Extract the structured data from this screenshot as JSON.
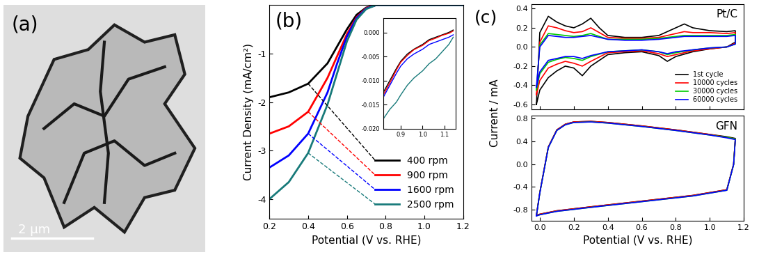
{
  "chart_data": [
    {
      "type": "image",
      "panel_label": "(a)",
      "scale_bar_label": "2 μm"
    },
    {
      "type": "line",
      "panel_label": "(b)",
      "xlabel": "Potential (V vs. RHE)",
      "ylabel": "Current Density (mA/cm²)",
      "x": [
        0.2,
        0.3,
        0.4,
        0.5,
        0.55,
        0.6,
        0.65,
        0.7,
        0.75,
        0.8,
        0.9,
        1.0,
        1.1,
        1.2
      ],
      "series": [
        {
          "name": "400 rpm",
          "color": "#000000",
          "values": [
            -1.9,
            -1.8,
            -1.62,
            -1.2,
            -0.85,
            -0.5,
            -0.2,
            -0.05,
            0,
            0,
            0,
            0,
            0,
            0
          ]
        },
        {
          "name": "900 rpm",
          "color": "#ff0000",
          "values": [
            -2.65,
            -2.5,
            -2.2,
            -1.5,
            -1.05,
            -0.6,
            -0.25,
            -0.06,
            0,
            0,
            0,
            0,
            0,
            0
          ]
        },
        {
          "name": "1600 rpm",
          "color": "#0000ff",
          "values": [
            -3.35,
            -3.1,
            -2.65,
            -1.8,
            -1.2,
            -0.65,
            -0.27,
            -0.07,
            0,
            0,
            0,
            0,
            0,
            0
          ]
        },
        {
          "name": "2500 rpm",
          "color": "#187a7a",
          "values": [
            -4.0,
            -3.65,
            -3.05,
            -2.05,
            -1.4,
            -0.75,
            -0.3,
            -0.08,
            0,
            0,
            0,
            0,
            0,
            0
          ]
        }
      ],
      "guide_from": 0.4,
      "xlim": [
        0.2,
        1.2
      ],
      "xticks": [
        0.2,
        0.4,
        0.6,
        0.8,
        1.0,
        1.2
      ],
      "ylim": [
        -4.4,
        0.0
      ],
      "yticks": [
        -1,
        -2,
        -3,
        -4
      ],
      "legend": "lower right",
      "inset": {
        "type": "line",
        "x": [
          0.82,
          0.85,
          0.88,
          0.9,
          0.93,
          0.96,
          1.0,
          1.03,
          1.06,
          1.09,
          1.12,
          1.14
        ],
        "series": [
          {
            "color": "#000000",
            "values": [
              -0.0125,
              -0.01,
              -0.0075,
              -0.006,
              -0.0045,
              -0.0035,
              -0.0025,
              -0.0015,
              -0.001,
              -0.0005,
              0.0,
              0.0005
            ]
          },
          {
            "color": "#ff0000",
            "values": [
              -0.013,
              -0.0105,
              -0.0078,
              -0.0062,
              -0.0048,
              -0.0036,
              -0.0027,
              -0.0017,
              -0.0012,
              -0.0006,
              -0.0002,
              0.0003
            ]
          },
          {
            "color": "#0000ff",
            "values": [
              -0.0135,
              -0.011,
              -0.0085,
              -0.007,
              -0.0055,
              -0.0045,
              -0.0035,
              -0.0025,
              -0.002,
              -0.0015,
              -0.001,
              -0.0005
            ]
          },
          {
            "color": "#187a7a",
            "values": [
              -0.018,
              -0.016,
              -0.0145,
              -0.013,
              -0.011,
              -0.0095,
              -0.008,
              -0.0065,
              -0.0055,
              -0.004,
              -0.0025,
              -0.001
            ]
          }
        ],
        "xlim": [
          0.82,
          1.15
        ],
        "xticks": [
          0.9,
          1.0,
          1.1
        ],
        "ylim": [
          -0.02,
          0.003
        ],
        "yticks": [
          {
            "value": 0.0,
            "label": "0.000"
          },
          {
            "value": -0.005,
            "label": "-0.005"
          },
          {
            "value": -0.01,
            "label": "-0.010"
          },
          {
            "value": -0.015,
            "label": "-0.015"
          },
          {
            "value": -0.02,
            "label": "-0.020"
          }
        ]
      }
    },
    {
      "type": "line",
      "panel_label": "(c)",
      "title": "Pt/C",
      "ylabel": "Current / mA",
      "x": [
        -0.02,
        0.0,
        0.05,
        0.1,
        0.15,
        0.2,
        0.25,
        0.3,
        0.35,
        0.4,
        0.5,
        0.6,
        0.7,
        0.8,
        0.85,
        0.9,
        1.0,
        1.1,
        1.15,
        1.15,
        1.1,
        1.0,
        0.9,
        0.8,
        0.75,
        0.7,
        0.6,
        0.5,
        0.4,
        0.3,
        0.25,
        0.2,
        0.15,
        0.1,
        0.05,
        0.0,
        -0.02
      ],
      "series": [
        {
          "name": "1st cycle",
          "color": "#000000",
          "values": [
            -0.6,
            0.15,
            0.32,
            0.26,
            0.22,
            0.2,
            0.24,
            0.3,
            0.2,
            0.12,
            0.1,
            0.1,
            0.12,
            0.2,
            0.24,
            0.2,
            0.17,
            0.16,
            0.17,
            0.05,
            0.0,
            -0.02,
            -0.05,
            -0.1,
            -0.15,
            -0.09,
            -0.05,
            -0.06,
            -0.08,
            -0.2,
            -0.3,
            -0.22,
            -0.2,
            -0.25,
            -0.32,
            -0.45,
            -0.6
          ]
        },
        {
          "name": "10000 cycles",
          "color": "#ff0000",
          "values": [
            -0.5,
            0.05,
            0.22,
            0.2,
            0.17,
            0.15,
            0.16,
            0.2,
            0.15,
            0.1,
            0.09,
            0.09,
            0.1,
            0.14,
            0.16,
            0.15,
            0.15,
            0.14,
            0.15,
            0.04,
            0.0,
            -0.02,
            -0.04,
            -0.08,
            -0.1,
            -0.07,
            -0.04,
            -0.05,
            -0.06,
            -0.15,
            -0.2,
            -0.17,
            -0.15,
            -0.18,
            -0.22,
            -0.35,
            -0.5
          ]
        },
        {
          "name": "30000 cycles",
          "color": "#00cc00",
          "values": [
            -0.45,
            0.02,
            0.14,
            0.13,
            0.12,
            0.11,
            0.12,
            0.14,
            0.11,
            0.08,
            0.08,
            0.08,
            0.09,
            0.11,
            0.12,
            0.12,
            0.12,
            0.12,
            0.13,
            0.03,
            0.0,
            -0.01,
            -0.03,
            -0.06,
            -0.08,
            -0.05,
            -0.03,
            -0.04,
            -0.05,
            -0.1,
            -0.14,
            -0.12,
            -0.11,
            -0.13,
            -0.16,
            -0.28,
            -0.45
          ]
        },
        {
          "name": "60000 cycles",
          "color": "#0000ff",
          "values": [
            -0.42,
            0.0,
            0.12,
            0.11,
            0.1,
            0.1,
            0.11,
            0.12,
            0.1,
            0.08,
            0.07,
            0.07,
            0.08,
            0.1,
            0.11,
            0.11,
            0.11,
            0.11,
            0.12,
            0.03,
            0.0,
            -0.01,
            -0.03,
            -0.05,
            -0.07,
            -0.05,
            -0.03,
            -0.04,
            -0.05,
            -0.09,
            -0.12,
            -0.1,
            -0.1,
            -0.12,
            -0.14,
            -0.26,
            -0.42
          ]
        }
      ],
      "xlim": [
        -0.05,
        1.2
      ],
      "xticks": [
        0.0,
        0.2,
        0.4,
        0.6,
        0.8,
        1.0,
        1.2
      ],
      "ylim": [
        -0.65,
        0.45
      ],
      "yticks": [
        -0.6,
        -0.4,
        -0.2,
        0.0,
        0.2,
        0.4
      ],
      "tick_labels": "y",
      "legend": "lower right"
    },
    {
      "type": "line",
      "title": "GFN",
      "xlabel": "Potential (V vs. RHE)",
      "x": [
        -0.02,
        0.0,
        0.05,
        0.1,
        0.15,
        0.2,
        0.3,
        0.4,
        0.6,
        0.8,
        1.0,
        1.1,
        1.15,
        1.15,
        1.14,
        1.1,
        0.9,
        0.6,
        0.3,
        0.1,
        0.0,
        -0.02
      ],
      "series": [
        {
          "color": "#000000",
          "values": [
            -0.9,
            -0.5,
            0.3,
            0.6,
            0.7,
            0.74,
            0.75,
            0.73,
            0.67,
            0.6,
            0.52,
            0.48,
            0.45,
            0.45,
            0.0,
            -0.45,
            -0.55,
            -0.65,
            -0.75,
            -0.82,
            -0.88,
            -0.9
          ]
        },
        {
          "color": "#ff0000",
          "values": [
            -0.9,
            -0.5,
            0.3,
            0.6,
            0.7,
            0.74,
            0.75,
            0.73,
            0.67,
            0.6,
            0.52,
            0.47,
            0.44,
            0.44,
            0.0,
            -0.45,
            -0.55,
            -0.65,
            -0.75,
            -0.82,
            -0.88,
            -0.9
          ]
        },
        {
          "color": "#00cc00",
          "values": [
            -0.91,
            -0.51,
            0.29,
            0.59,
            0.69,
            0.73,
            0.74,
            0.72,
            0.66,
            0.59,
            0.51,
            0.47,
            0.44,
            0.44,
            -0.01,
            -0.46,
            -0.56,
            -0.66,
            -0.76,
            -0.83,
            -0.89,
            -0.91
          ]
        },
        {
          "color": "#0000ff",
          "values": [
            -0.91,
            -0.51,
            0.29,
            0.59,
            0.69,
            0.73,
            0.74,
            0.72,
            0.66,
            0.59,
            0.51,
            0.46,
            0.43,
            0.43,
            -0.01,
            -0.46,
            -0.56,
            -0.66,
            -0.76,
            -0.83,
            -0.89,
            -0.91
          ]
        }
      ],
      "xlim": [
        -0.05,
        1.2
      ],
      "xticks": [
        {
          "value": 0.0,
          "label": "0.0"
        },
        0.2,
        0.4,
        0.6,
        0.8,
        1.0,
        1.2
      ],
      "ylim": [
        -1.0,
        0.85
      ],
      "yticks": [
        -0.8,
        -0.4,
        0.0,
        0.4,
        0.8
      ]
    }
  ]
}
